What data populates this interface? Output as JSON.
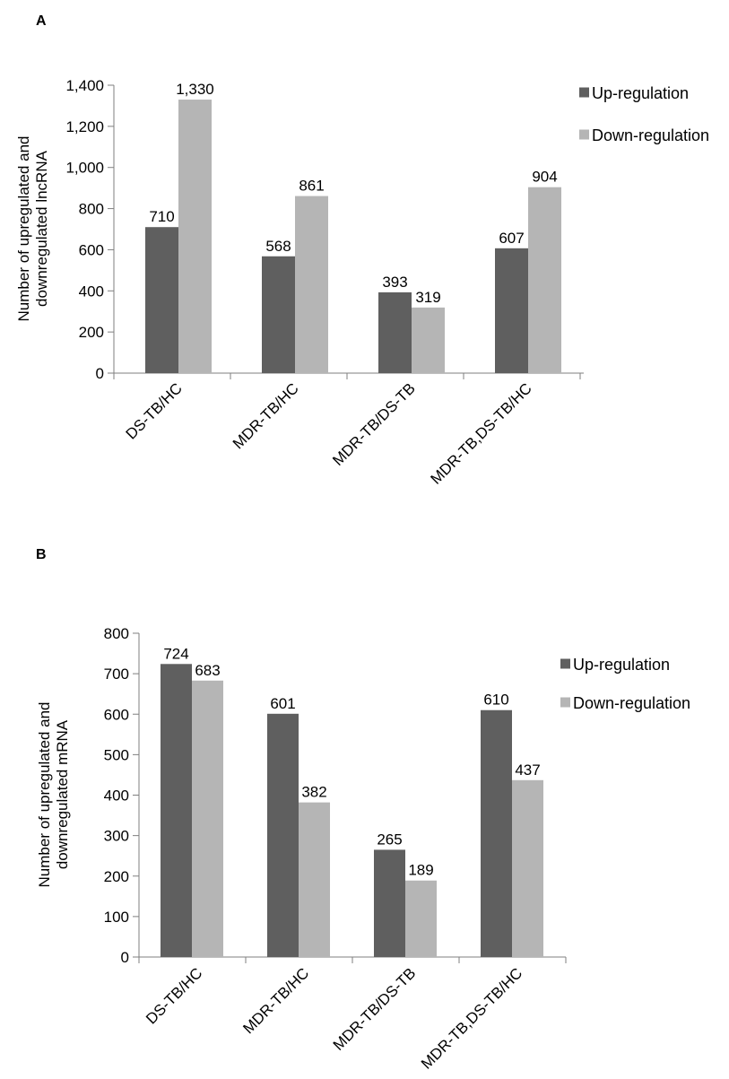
{
  "colors": {
    "up": "#5f5f5f",
    "down": "#b5b5b5",
    "axis": "#7f7f7f"
  },
  "chart_data": [
    {
      "panel": "A",
      "type": "bar",
      "categories": [
        "DS-TB/HC",
        "MDR-TB/HC",
        "MDR-TB/DS-TB",
        "MDR-TB,DS-TB/HC"
      ],
      "series": [
        {
          "name": "Up-regulation",
          "values": [
            710,
            568,
            393,
            607
          ]
        },
        {
          "name": "Down-regulation",
          "values": [
            1330,
            861,
            319,
            904
          ]
        }
      ],
      "data_labels": [
        [
          "710",
          "568",
          "393",
          "607"
        ],
        [
          "1,330",
          "861",
          "319",
          "904"
        ]
      ],
      "ylabel_lines": [
        "Number of upregulated and",
        "downregulated lncRNA"
      ],
      "ylim": [
        0,
        1400
      ],
      "yticks": [
        "0",
        "200",
        "400",
        "600",
        "800",
        "1,000",
        "1,200",
        "1,400"
      ],
      "legend_position": "top-right",
      "grid": false
    },
    {
      "panel": "B",
      "type": "bar",
      "categories": [
        "DS-TB/HC",
        "MDR-TB/HC",
        "MDR-TB/DS-TB",
        "MDR-TB,DS-TB/HC"
      ],
      "series": [
        {
          "name": "Up-regulation",
          "values": [
            724,
            601,
            265,
            610
          ]
        },
        {
          "name": "Down-regulation",
          "values": [
            683,
            382,
            189,
            437
          ]
        }
      ],
      "data_labels": [
        [
          "724",
          "601",
          "265",
          "610"
        ],
        [
          "683",
          "382",
          "189",
          "437"
        ]
      ],
      "ylabel_lines": [
        "Number of upregulated and",
        "downregulated mRNA"
      ],
      "ylim": [
        0,
        800
      ],
      "yticks": [
        "0",
        "100",
        "200",
        "300",
        "400",
        "500",
        "600",
        "700",
        "800"
      ],
      "legend_position": "top-right",
      "grid": false
    }
  ]
}
